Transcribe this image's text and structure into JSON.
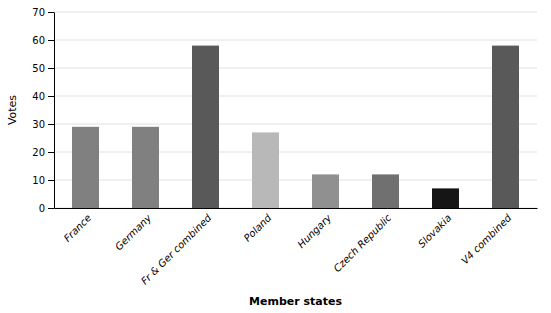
{
  "chart_data": {
    "type": "bar",
    "categories": [
      "France",
      "Germany",
      "Fr & Ger combined",
      "Poland",
      "Hungary",
      "Czech Republic",
      "Slovakia",
      "V4 combined"
    ],
    "values": [
      29,
      29,
      58,
      27,
      12,
      12,
      7,
      58
    ],
    "colors": [
      "#808080",
      "#808080",
      "#595959",
      "#b8b8b8",
      "#909090",
      "#707070",
      "#151515",
      "#595959"
    ],
    "xlabel": "Member states",
    "ylabel": "Votes",
    "ylim": [
      0,
      70
    ],
    "yticks": [
      0,
      10,
      20,
      30,
      40,
      50,
      60,
      70
    ],
    "grid": true
  }
}
